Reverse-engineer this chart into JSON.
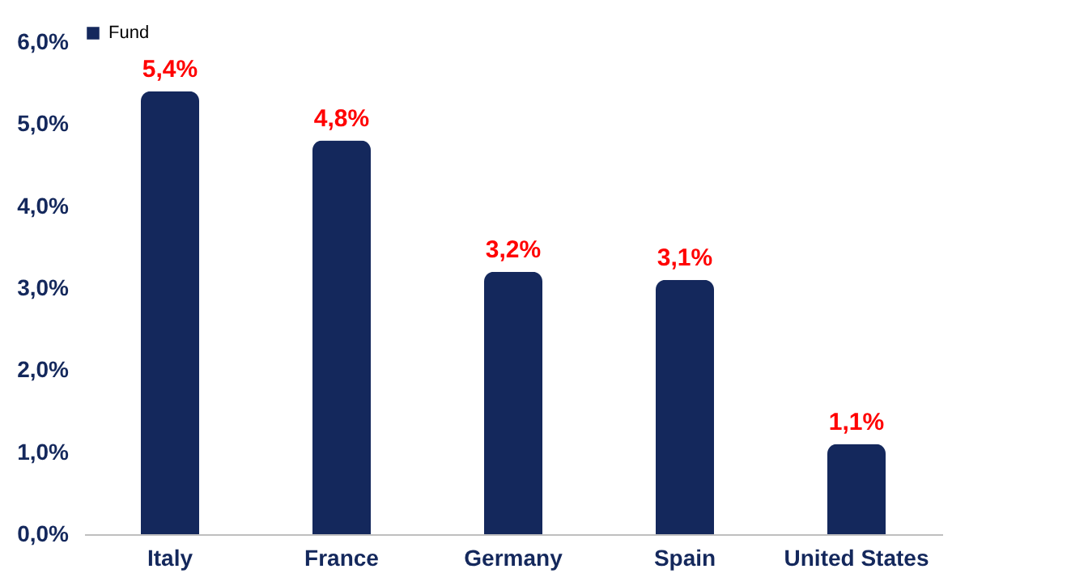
{
  "chart_data": {
    "type": "bar",
    "categories": [
      "Italy",
      "France",
      "Germany",
      "Spain",
      "United States"
    ],
    "series": [
      {
        "name": "Fund",
        "color": "#14285c",
        "values": [
          5.4,
          4.8,
          3.2,
          3.1,
          1.1
        ],
        "value_labels": [
          "5,4%",
          "4,8%",
          "3,2%",
          "3,1%",
          "1,1%"
        ]
      }
    ],
    "ylim": [
      0,
      6
    ],
    "yticks": [
      {
        "value": 0,
        "label": "0,0%"
      },
      {
        "value": 1,
        "label": "1,0%"
      },
      {
        "value": 2,
        "label": "2,0%"
      },
      {
        "value": 3,
        "label": "3,0%"
      },
      {
        "value": 4,
        "label": "4,0%"
      },
      {
        "value": 5,
        "label": "5,0%"
      },
      {
        "value": 6,
        "label": "6,0%"
      }
    ],
    "legend": "top",
    "grid": false
  }
}
